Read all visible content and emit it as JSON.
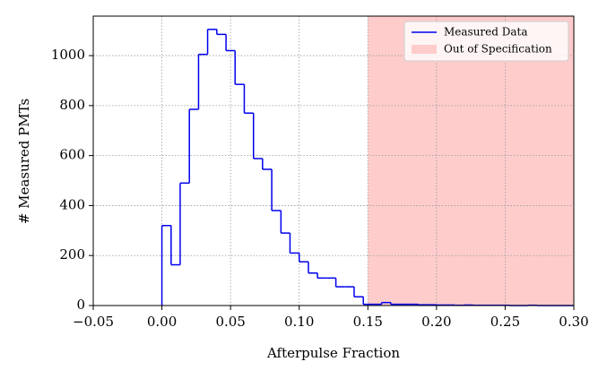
{
  "chart_data": {
    "type": "histogram",
    "xlabel": "Afterpulse Fraction",
    "ylabel": "# Measured PMTs",
    "bins": [
      0,
      0.0067,
      0.0133,
      0.02,
      0.0267,
      0.0333,
      0.04,
      0.0467,
      0.0533,
      0.06,
      0.0667,
      0.0733,
      0.08,
      0.0867,
      0.0933,
      0.1,
      0.1067,
      0.1133,
      0.12,
      0.1267,
      0.1333,
      0.14,
      0.1467,
      0.1533,
      0.16,
      0.1667,
      0.1733,
      0.18,
      0.1867,
      0.1933,
      0.2,
      0.2067,
      0.2133,
      0.22,
      0.2267,
      0.2333,
      0.24,
      0.2467,
      0.2533,
      0.26,
      0.2667,
      0.2733,
      0.28,
      0.2867,
      0.2933,
      0.3
    ],
    "series": [
      {
        "name": "Measured Data",
        "color": "#0000ee",
        "values": [
          320,
          163,
          490,
          785,
          1005,
          1105,
          1085,
          1020,
          885,
          770,
          588,
          545,
          380,
          290,
          210,
          175,
          130,
          110,
          110,
          75,
          75,
          35,
          5,
          5,
          12,
          5,
          5,
          5,
          3,
          3,
          2,
          2,
          1,
          2,
          1,
          1,
          1,
          1,
          0,
          0,
          1,
          0,
          0,
          0,
          0
        ]
      }
    ],
    "span": {
      "name": "Out of Specification",
      "color": "#ffcccc",
      "xmin": 0.15,
      "xmax": 0.3
    },
    "xlim": [
      -0.05,
      0.3
    ],
    "xticks": [
      {
        "value": -0.05,
        "label": "−0.05"
      },
      {
        "value": 0,
        "label": "0.00"
      },
      {
        "value": 0.05,
        "label": "0.05"
      },
      {
        "value": 0.1,
        "label": "0.10"
      },
      {
        "value": 0.15,
        "label": "0.15"
      },
      {
        "value": 0.2,
        "label": "0.20"
      },
      {
        "value": 0.25,
        "label": "0.25"
      },
      {
        "value": 0.3,
        "label": "0.30"
      }
    ],
    "ylim": [
      0,
      1158
    ],
    "yticks": [
      0,
      200,
      400,
      600,
      800,
      1000
    ],
    "grid": true,
    "legend": "upper right"
  }
}
